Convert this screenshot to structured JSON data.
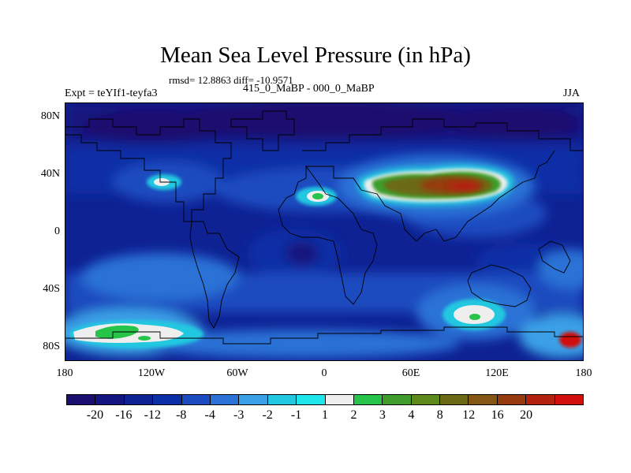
{
  "title": "Mean Sea Level Pressure (in hPa)",
  "stats": "rmsd= 12.8863 diff= -10.9571",
  "subtitle": "415_0_MaBP - 000_0_MaBP",
  "experiment": "Expt = teYIf1-teyfa3",
  "season": "JJA",
  "lat_labels": [
    "80N",
    "40N",
    "0",
    "40S",
    "80S"
  ],
  "lon_labels": [
    "180",
    "120W",
    "60W",
    "0",
    "60E",
    "120E",
    "180"
  ],
  "colorbar": {
    "colors": [
      "#1a0f6e",
      "#15157f",
      "#0e2294",
      "#0a2fa6",
      "#1c4cc0",
      "#2a72d6",
      "#3aa0e6",
      "#22c8e0",
      "#1fe6ea",
      "#eeeeee",
      "#27c44a",
      "#3e9c2a",
      "#5d8a1a",
      "#6c6a12",
      "#845714",
      "#963a10",
      "#b3220c",
      "#d20f0a"
    ],
    "labels": [
      "-20",
      "-16",
      "-12",
      "-8",
      "-4",
      "-3",
      "-2",
      "-1",
      "1",
      "2",
      "3",
      "4",
      "8",
      "12",
      "16",
      "20"
    ]
  }
}
